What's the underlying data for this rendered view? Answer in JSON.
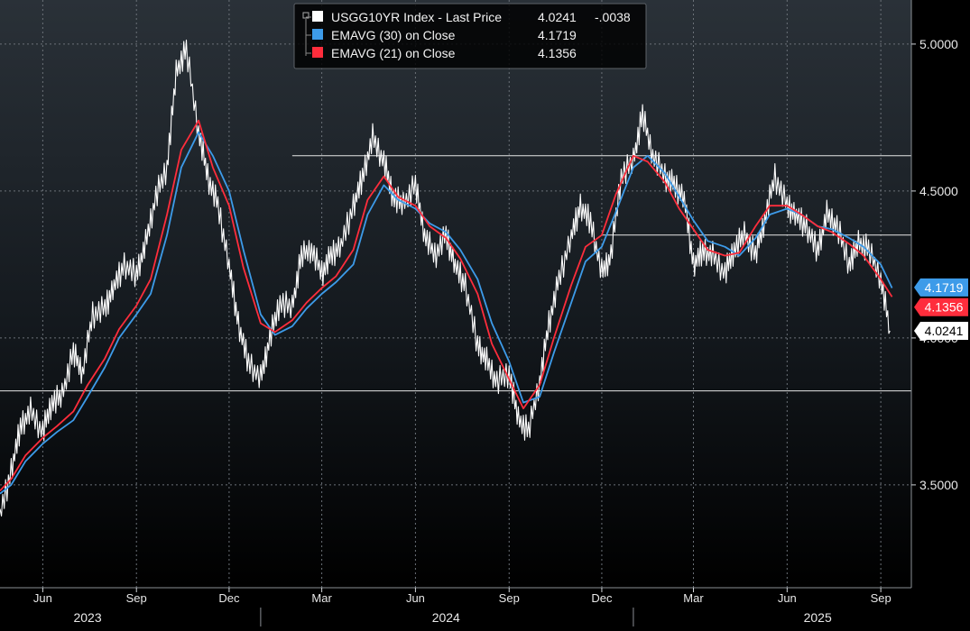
{
  "legend": {
    "entries": [
      {
        "label": "USGG10YR Index - Last Price",
        "value": "4.0241",
        "change": "-.0038",
        "color": "#ffffff"
      },
      {
        "label": "EMAVG (30)  on Close",
        "value": "4.1719",
        "change": "",
        "color": "#3d9be9"
      },
      {
        "label": "EMAVG (21)  on Close",
        "value": "4.1356",
        "change": "",
        "color": "#ff2d3c"
      }
    ]
  },
  "chart_data": {
    "type": "line",
    "x_tick_labels": [
      "Jun",
      "Sep",
      "Dec",
      "Mar",
      "Jun",
      "Sep",
      "Dec",
      "Mar",
      "Jun",
      "Sep"
    ],
    "x_tick_dates": [
      "2023-06-01",
      "2023-09-01",
      "2023-12-01",
      "2024-03-01",
      "2024-06-01",
      "2024-09-01",
      "2024-12-01",
      "2025-03-01",
      "2025-06-01",
      "2025-09-01"
    ],
    "year_labels": [
      "2023",
      "2024",
      "2025"
    ],
    "year_label_dates": [
      "2023-07-15",
      "2024-07-01",
      "2025-07-01"
    ],
    "x_range": [
      "2023-04-20",
      "2025-10-01"
    ],
    "y_ticks": [
      3.5,
      4.0,
      4.5,
      5.0
    ],
    "y_tick_labels": [
      "3.5000",
      "4.0000",
      "4.5000",
      "5.0000"
    ],
    "y_range": [
      3.15,
      5.15
    ],
    "grid": true,
    "legend_position": "top-center",
    "horizontal_levels": [
      {
        "y": 4.62,
        "from": "2024-02-01"
      },
      {
        "y": 4.35,
        "from": "2024-12-01"
      },
      {
        "y": 3.82,
        "from": "2023-04-20"
      }
    ],
    "last_value_labels": [
      {
        "text": "4.1719",
        "value": 4.1719,
        "color": "#3d9be9"
      },
      {
        "text": "4.1356",
        "value": 4.1356,
        "color": "#ff2d3c"
      },
      {
        "text": "4.0241",
        "value": 4.0241,
        "color": "#ffffff"
      }
    ],
    "series": [
      {
        "name": "USGG10YR Index - Last Price",
        "color": "#ffffff",
        "x": [
          "2023-04-20",
          "2023-05-01",
          "2023-05-10",
          "2023-05-20",
          "2023-06-01",
          "2023-06-10",
          "2023-06-20",
          "2023-07-01",
          "2023-07-10",
          "2023-07-20",
          "2023-08-01",
          "2023-08-10",
          "2023-08-20",
          "2023-09-01",
          "2023-09-10",
          "2023-09-20",
          "2023-10-01",
          "2023-10-10",
          "2023-10-20",
          "2023-11-01",
          "2023-11-10",
          "2023-11-20",
          "2023-12-01",
          "2023-12-10",
          "2023-12-20",
          "2024-01-01",
          "2024-01-10",
          "2024-01-20",
          "2024-02-01",
          "2024-02-10",
          "2024-02-20",
          "2024-03-01",
          "2024-03-10",
          "2024-03-20",
          "2024-04-01",
          "2024-04-10",
          "2024-04-20",
          "2024-05-01",
          "2024-05-10",
          "2024-05-20",
          "2024-06-01",
          "2024-06-10",
          "2024-06-20",
          "2024-07-01",
          "2024-07-10",
          "2024-07-20",
          "2024-08-01",
          "2024-08-10",
          "2024-08-20",
          "2024-09-01",
          "2024-09-10",
          "2024-09-20",
          "2024-10-01",
          "2024-10-10",
          "2024-10-20",
          "2024-11-01",
          "2024-11-10",
          "2024-11-20",
          "2024-12-01",
          "2024-12-10",
          "2024-12-20",
          "2025-01-01",
          "2025-01-10",
          "2025-01-20",
          "2025-02-01",
          "2025-02-10",
          "2025-02-20",
          "2025-03-01",
          "2025-03-10",
          "2025-03-20",
          "2025-04-01",
          "2025-04-10",
          "2025-04-20",
          "2025-05-01",
          "2025-05-10",
          "2025-05-20",
          "2025-06-01",
          "2025-06-10",
          "2025-06-20",
          "2025-07-01",
          "2025-07-10",
          "2025-07-20",
          "2025-08-01",
          "2025-08-10",
          "2025-08-20",
          "2025-09-01",
          "2025-09-10"
        ],
        "values": [
          3.4,
          3.55,
          3.7,
          3.75,
          3.68,
          3.78,
          3.8,
          3.95,
          3.88,
          4.08,
          4.1,
          4.18,
          4.25,
          4.22,
          4.32,
          4.48,
          4.58,
          4.9,
          4.98,
          4.7,
          4.55,
          4.45,
          4.25,
          4.05,
          3.92,
          3.86,
          4.0,
          4.12,
          4.1,
          4.28,
          4.3,
          4.22,
          4.28,
          4.32,
          4.45,
          4.55,
          4.68,
          4.6,
          4.48,
          4.45,
          4.52,
          4.35,
          4.28,
          4.35,
          4.25,
          4.18,
          3.98,
          3.92,
          3.85,
          3.88,
          3.72,
          3.68,
          3.85,
          4.05,
          4.2,
          4.35,
          4.45,
          4.4,
          4.22,
          4.28,
          4.55,
          4.6,
          4.76,
          4.62,
          4.55,
          4.52,
          4.48,
          4.25,
          4.3,
          4.28,
          4.22,
          4.3,
          4.35,
          4.28,
          4.4,
          4.55,
          4.45,
          4.42,
          4.38,
          4.3,
          4.42,
          4.38,
          4.25,
          4.32,
          4.3,
          4.2,
          4.0241
        ]
      },
      {
        "name": "EMAVG (30)  on Close",
        "color": "#3d9be9",
        "x": [
          "2023-04-20",
          "2023-05-01",
          "2023-05-15",
          "2023-06-01",
          "2023-06-15",
          "2023-07-01",
          "2023-07-15",
          "2023-08-01",
          "2023-08-15",
          "2023-09-01",
          "2023-09-15",
          "2023-10-01",
          "2023-10-15",
          "2023-11-01",
          "2023-11-15",
          "2023-12-01",
          "2023-12-15",
          "2024-01-01",
          "2024-01-15",
          "2024-02-01",
          "2024-02-15",
          "2024-03-01",
          "2024-03-15",
          "2024-04-01",
          "2024-04-15",
          "2024-05-01",
          "2024-05-15",
          "2024-06-01",
          "2024-06-15",
          "2024-07-01",
          "2024-07-15",
          "2024-08-01",
          "2024-08-15",
          "2024-09-01",
          "2024-09-15",
          "2024-10-01",
          "2024-10-15",
          "2024-11-01",
          "2024-11-15",
          "2024-12-01",
          "2024-12-15",
          "2025-01-01",
          "2025-01-15",
          "2025-02-01",
          "2025-02-15",
          "2025-03-01",
          "2025-03-15",
          "2025-04-01",
          "2025-04-15",
          "2025-05-01",
          "2025-05-15",
          "2025-06-01",
          "2025-06-15",
          "2025-07-01",
          "2025-07-15",
          "2025-08-01",
          "2025-08-15",
          "2025-09-01",
          "2025-09-12"
        ],
        "values": [
          3.47,
          3.5,
          3.58,
          3.64,
          3.68,
          3.72,
          3.8,
          3.9,
          4.0,
          4.08,
          4.15,
          4.35,
          4.58,
          4.7,
          4.62,
          4.5,
          4.3,
          4.08,
          4.01,
          4.04,
          4.1,
          4.15,
          4.19,
          4.25,
          4.42,
          4.52,
          4.47,
          4.44,
          4.39,
          4.36,
          4.3,
          4.2,
          4.05,
          3.92,
          3.78,
          3.8,
          3.95,
          4.12,
          4.26,
          4.31,
          4.43,
          4.58,
          4.62,
          4.56,
          4.48,
          4.4,
          4.33,
          4.31,
          4.28,
          4.34,
          4.42,
          4.44,
          4.42,
          4.38,
          4.37,
          4.34,
          4.31,
          4.25,
          4.17
        ]
      },
      {
        "name": "EMAVG (21)  on Close",
        "color": "#ff2d3c",
        "x": [
          "2023-04-20",
          "2023-05-01",
          "2023-05-15",
          "2023-06-01",
          "2023-06-15",
          "2023-07-01",
          "2023-07-15",
          "2023-08-01",
          "2023-08-15",
          "2023-09-01",
          "2023-09-15",
          "2023-10-01",
          "2023-10-15",
          "2023-11-01",
          "2023-11-15",
          "2023-12-01",
          "2023-12-15",
          "2024-01-01",
          "2024-01-15",
          "2024-02-01",
          "2024-02-15",
          "2024-03-01",
          "2024-03-15",
          "2024-04-01",
          "2024-04-15",
          "2024-05-01",
          "2024-05-15",
          "2024-06-01",
          "2024-06-15",
          "2024-07-01",
          "2024-07-15",
          "2024-08-01",
          "2024-08-15",
          "2024-09-01",
          "2024-09-15",
          "2024-10-01",
          "2024-10-15",
          "2024-11-01",
          "2024-11-15",
          "2024-12-01",
          "2024-12-15",
          "2025-01-01",
          "2025-01-15",
          "2025-02-01",
          "2025-02-15",
          "2025-03-01",
          "2025-03-15",
          "2025-04-01",
          "2025-04-15",
          "2025-05-01",
          "2025-05-15",
          "2025-06-01",
          "2025-06-15",
          "2025-07-01",
          "2025-07-15",
          "2025-08-01",
          "2025-08-15",
          "2025-09-01",
          "2025-09-12"
        ],
        "values": [
          3.48,
          3.52,
          3.6,
          3.66,
          3.7,
          3.75,
          3.84,
          3.93,
          4.03,
          4.11,
          4.2,
          4.42,
          4.64,
          4.74,
          4.58,
          4.45,
          4.24,
          4.05,
          4.02,
          4.06,
          4.12,
          4.17,
          4.21,
          4.3,
          4.47,
          4.55,
          4.48,
          4.45,
          4.38,
          4.34,
          4.27,
          4.15,
          3.98,
          3.86,
          3.76,
          3.84,
          4.0,
          4.18,
          4.31,
          4.35,
          4.49,
          4.62,
          4.6,
          4.53,
          4.44,
          4.37,
          4.3,
          4.28,
          4.29,
          4.38,
          4.45,
          4.45,
          4.42,
          4.38,
          4.36,
          4.32,
          4.28,
          4.2,
          4.14
        ]
      }
    ]
  }
}
